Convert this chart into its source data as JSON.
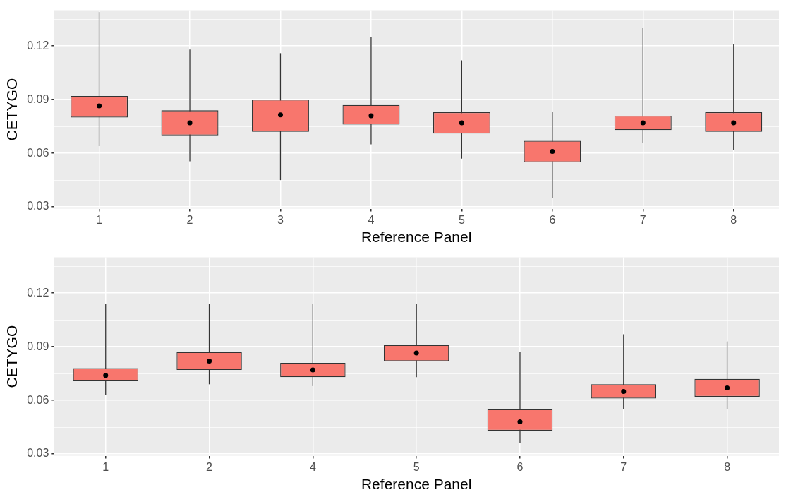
{
  "chart_data": [
    {
      "type": "box",
      "xlabel": "Reference Panel",
      "ylabel": "CETYGO",
      "categories": [
        "1",
        "2",
        "3",
        "4",
        "5",
        "6",
        "7",
        "8"
      ],
      "color": "#f8766d",
      "ylim": [
        0.029,
        0.14
      ],
      "yticks": [
        0.03,
        {
          "value": 0.045,
          "label": null
        },
        0.06,
        {
          "value": 0.075,
          "label": null
        },
        0.09,
        {
          "value": 0.105,
          "label": null
        },
        0.12,
        {
          "value": 0.135,
          "label": null
        }
      ],
      "grid": true,
      "boxes": [
        {
          "low": 0.064,
          "q1": 0.08,
          "median": 0.0865,
          "q3": 0.092,
          "high": 0.139
        },
        {
          "low": 0.0555,
          "q1": 0.07,
          "median": 0.077,
          "q3": 0.084,
          "high": 0.118
        },
        {
          "low": 0.045,
          "q1": 0.072,
          "median": 0.0815,
          "q3": 0.09,
          "high": 0.116
        },
        {
          "low": 0.065,
          "q1": 0.076,
          "median": 0.081,
          "q3": 0.087,
          "high": 0.125
        },
        {
          "low": 0.057,
          "q1": 0.071,
          "median": 0.077,
          "q3": 0.083,
          "high": 0.112
        },
        {
          "low": 0.035,
          "q1": 0.055,
          "median": 0.061,
          "q3": 0.067,
          "high": 0.083
        },
        {
          "low": 0.066,
          "q1": 0.073,
          "median": 0.077,
          "q3": 0.081,
          "high": 0.13
        },
        {
          "low": 0.062,
          "q1": 0.072,
          "median": 0.077,
          "q3": 0.083,
          "high": 0.121
        }
      ]
    },
    {
      "type": "box",
      "xlabel": "Reference Panel",
      "ylabel": "CETYGO",
      "categories": [
        "1",
        "2",
        "4",
        "5",
        "6",
        "7",
        "8"
      ],
      "color": "#f8766d",
      "ylim": [
        0.029,
        0.14
      ],
      "yticks": [
        0.03,
        {
          "value": 0.045,
          "label": null
        },
        0.06,
        {
          "value": 0.075,
          "label": null
        },
        0.09,
        {
          "value": 0.105,
          "label": null
        },
        0.12,
        {
          "value": 0.135,
          "label": null
        }
      ],
      "grid": true,
      "boxes": [
        {
          "low": 0.063,
          "q1": 0.071,
          "median": 0.074,
          "q3": 0.078,
          "high": 0.114
        },
        {
          "low": 0.069,
          "q1": 0.077,
          "median": 0.082,
          "q3": 0.087,
          "high": 0.114
        },
        {
          "low": 0.068,
          "q1": 0.073,
          "median": 0.077,
          "q3": 0.081,
          "high": 0.114
        },
        {
          "low": 0.073,
          "q1": 0.082,
          "median": 0.0865,
          "q3": 0.091,
          "high": 0.114
        },
        {
          "low": 0.036,
          "q1": 0.043,
          "median": 0.048,
          "q3": 0.055,
          "high": 0.087
        },
        {
          "low": 0.055,
          "q1": 0.061,
          "median": 0.065,
          "q3": 0.069,
          "high": 0.097
        },
        {
          "low": 0.055,
          "q1": 0.062,
          "median": 0.067,
          "q3": 0.072,
          "high": 0.093
        }
      ]
    }
  ]
}
